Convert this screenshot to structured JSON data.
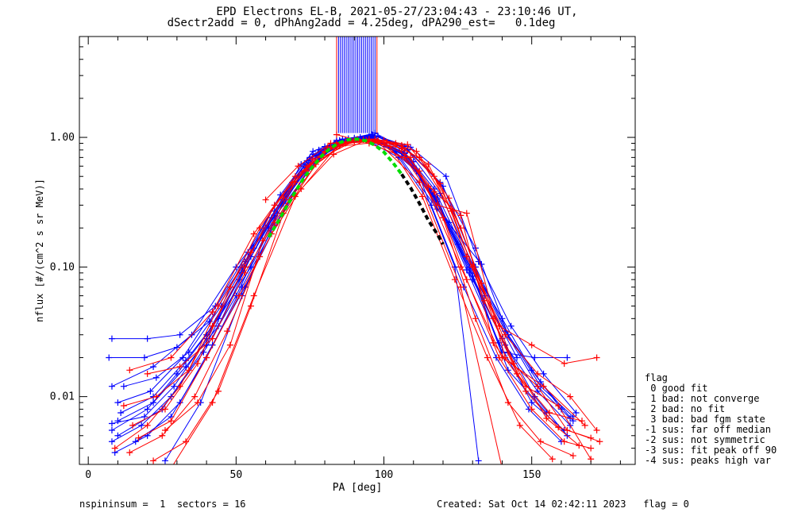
{
  "title_line1": "EPD Electrons EL-B, 2021-05-27/23:04:43 - 23:10:46 UT,",
  "title_line2": "dSectr2add = 0, dPhAng2add = 4.25deg, dPA290_est=   0.1deg",
  "footer_left": "nspininsum =  1  sectors = 16",
  "footer_right": "Created: Sat Oct 14 02:42:11 2023   flag = 0",
  "legend": {
    "title": "flag",
    "items": [
      " 0 good fit",
      " 1 bad: not converge",
      " 2 bad: no fit",
      " 3 bad: bad fgm state",
      "-1 sus: far off median",
      "-2 sus: not symmetric",
      "-3 sus: fit peak off 90",
      "-4 sus: peaks high var"
    ]
  },
  "chart_data": {
    "type": "line",
    "xlabel": "PA [deg]",
    "ylabel": "nflux [#/(cm^2 s sr MeV)]",
    "xlim": [
      -3,
      185
    ],
    "ylim": [
      0.003,
      6
    ],
    "yscale": "log",
    "xticks": [
      0,
      50,
      100,
      150
    ],
    "yticks": [
      0.01,
      0.1,
      1.0
    ],
    "ytick_labels": [
      "0.01",
      "0.10",
      "1.00"
    ],
    "colors": {
      "spin_a": "#ff0000",
      "spin_b": "#0000ff",
      "fit_green": "#00dd00",
      "fit_black": "#000000"
    },
    "series": [
      {
        "color": "spin_b",
        "x": [
          8,
          20,
          30,
          40,
          52,
          63,
          74,
          84,
          96,
          107,
          118,
          130,
          141,
          152,
          163
        ],
        "y": [
          0.0055,
          0.008,
          0.015,
          0.03,
          0.09,
          0.25,
          0.62,
          0.93,
          0.98,
          0.75,
          0.34,
          0.08,
          0.025,
          0.011,
          0.006
        ]
      },
      {
        "color": "spin_b",
        "x": [
          10,
          21,
          32,
          42,
          53,
          63,
          75,
          85,
          95,
          106,
          117,
          128,
          140,
          150,
          160
        ],
        "y": [
          0.009,
          0.011,
          0.02,
          0.045,
          0.11,
          0.3,
          0.7,
          0.95,
          1.02,
          0.82,
          0.4,
          0.12,
          0.04,
          0.016,
          0.008
        ]
      },
      {
        "color": "spin_b",
        "x": [
          8,
          18,
          28,
          39,
          50,
          61,
          73,
          84,
          94,
          105,
          116,
          127,
          138,
          149,
          160
        ],
        "y": [
          0.0045,
          0.006,
          0.01,
          0.022,
          0.06,
          0.2,
          0.55,
          0.88,
          0.96,
          0.7,
          0.3,
          0.07,
          0.02,
          0.008,
          0.0045
        ]
      },
      {
        "color": "spin_b",
        "x": [
          8,
          20,
          31,
          43,
          54,
          65,
          76,
          86,
          96,
          107,
          119,
          131,
          142,
          153,
          164
        ],
        "y": [
          0.028,
          0.028,
          0.03,
          0.05,
          0.13,
          0.36,
          0.78,
          0.97,
          1.05,
          0.85,
          0.45,
          0.14,
          0.03,
          0.012,
          0.007
        ]
      },
      {
        "color": "spin_b",
        "x": [
          7,
          19,
          30,
          41,
          52,
          63,
          74,
          85,
          95,
          106,
          117,
          129,
          140,
          151,
          162
        ],
        "y": [
          0.02,
          0.02,
          0.024,
          0.038,
          0.1,
          0.27,
          0.66,
          0.94,
          1.0,
          0.78,
          0.36,
          0.1,
          0.022,
          0.02,
          0.02
        ]
      },
      {
        "color": "spin_b",
        "x": [
          10,
          22,
          33,
          44,
          55,
          66,
          77,
          87,
          97,
          108,
          120,
          131,
          142,
          153,
          164
        ],
        "y": [
          0.0065,
          0.009,
          0.017,
          0.035,
          0.12,
          0.33,
          0.72,
          0.96,
          1.08,
          0.8,
          0.42,
          0.1,
          0.03,
          0.013,
          0.0065
        ]
      },
      {
        "color": "spin_b",
        "x": [
          9,
          20,
          31,
          42,
          53,
          64,
          75,
          85,
          96,
          107,
          118,
          129,
          140,
          151,
          162
        ],
        "y": [
          0.0037,
          0.005,
          0.009,
          0.025,
          0.07,
          0.22,
          0.6,
          0.9,
          0.97,
          0.72,
          0.32,
          0.09,
          0.028,
          0.01,
          0.005
        ]
      },
      {
        "color": "spin_b",
        "x": [
          12,
          23,
          34,
          45,
          56,
          67,
          78,
          88,
          98,
          109,
          121,
          132,
          143,
          154,
          165
        ],
        "y": [
          0.012,
          0.014,
          0.022,
          0.05,
          0.14,
          0.38,
          0.8,
          0.98,
          1.02,
          0.84,
          0.5,
          0.11,
          0.035,
          0.015,
          0.0075
        ]
      },
      {
        "color": "spin_b",
        "x": [
          8,
          19,
          29,
          40,
          51,
          62,
          73,
          84,
          95,
          106,
          117,
          128,
          139,
          150,
          161
        ],
        "y": [
          0.0062,
          0.007,
          0.012,
          0.028,
          0.08,
          0.24,
          0.6,
          0.92,
          0.99,
          0.76,
          0.35,
          0.095,
          0.026,
          0.009,
          0.0055
        ]
      },
      {
        "color": "spin_b",
        "x": [
          11,
          22,
          33,
          44,
          55,
          66,
          76,
          87,
          97,
          108,
          119,
          130,
          141,
          152,
          163
        ],
        "y": [
          0.0075,
          0.01,
          0.019,
          0.04,
          0.1,
          0.31,
          0.74,
          0.95,
          1.03,
          0.8,
          0.37,
          0.105,
          0.032,
          0.012,
          0.0068
        ]
      },
      {
        "color": "spin_b",
        "x": [
          8,
          22,
          35,
          50,
          64,
          78,
          90,
          100,
          111,
          122,
          134,
          145
        ],
        "y": [
          0.012,
          0.017,
          0.03,
          0.1,
          0.26,
          0.7,
          0.99,
          0.9,
          0.55,
          0.22,
          0.06,
          0.02
        ]
      },
      {
        "color": "spin_b",
        "x": [
          16,
          28,
          40,
          52,
          63,
          75,
          86,
          96,
          107,
          118,
          130,
          142,
          155
        ],
        "y": [
          0.0045,
          0.007,
          0.02,
          0.07,
          0.21,
          0.6,
          0.93,
          1.0,
          0.76,
          0.33,
          0.085,
          0.016,
          0.0075
        ]
      },
      {
        "color": "spin_b",
        "x": [
          10,
          25,
          40,
          55,
          70,
          84,
          97,
          110,
          125,
          142
        ],
        "y": [
          0.005,
          0.008,
          0.025,
          0.13,
          0.45,
          0.9,
          1.01,
          0.6,
          0.15,
          0.022
        ]
      },
      {
        "color": "spin_b",
        "x": [
          26,
          38,
          52,
          66,
          80,
          92,
          104,
          118,
          133
        ],
        "y": [
          0.0032,
          0.009,
          0.06,
          0.32,
          0.85,
          1.0,
          0.78,
          0.28,
          0.105
        ]
      },
      {
        "color": "spin_b",
        "x": [
          60,
          72,
          84,
          96,
          110,
          124,
          132
        ],
        "y": [
          0.2,
          0.62,
          0.95,
          1.04,
          0.65,
          0.1,
          0.0032
        ]
      },
      {
        "color": "spin_a",
        "x": [
          9,
          20,
          31,
          42,
          53,
          63,
          74,
          84,
          95,
          106,
          117,
          128,
          139,
          150,
          161,
          170
        ],
        "y": [
          0.004,
          0.006,
          0.012,
          0.035,
          0.1,
          0.3,
          0.6,
          0.88,
          0.94,
          0.82,
          0.38,
          0.08,
          0.02,
          0.008,
          0.0045,
          0.004
        ]
      },
      {
        "color": "spin_a",
        "x": [
          12,
          23,
          34,
          44,
          55,
          66,
          76,
          87,
          97,
          108,
          119,
          130,
          141,
          152,
          163,
          172
        ],
        "y": [
          0.0085,
          0.01,
          0.016,
          0.05,
          0.13,
          0.34,
          0.68,
          0.92,
          0.97,
          0.88,
          0.44,
          0.1,
          0.03,
          0.015,
          0.01,
          0.0055
        ]
      },
      {
        "color": "spin_a",
        "x": [
          15,
          26,
          37,
          48,
          58,
          69,
          80,
          90,
          101,
          112,
          123,
          134,
          145,
          156,
          167
        ],
        "y": [
          0.006,
          0.008,
          0.018,
          0.07,
          0.2,
          0.45,
          0.78,
          0.95,
          0.92,
          0.7,
          0.27,
          0.055,
          0.015,
          0.0075,
          0.0065
        ]
      },
      {
        "color": "spin_a",
        "x": [
          17,
          28,
          40,
          51,
          62,
          72,
          83,
          94,
          104,
          115,
          126,
          137,
          148,
          159,
          170
        ],
        "y": [
          0.0048,
          0.0065,
          0.02,
          0.06,
          0.18,
          0.4,
          0.74,
          0.95,
          0.9,
          0.62,
          0.2,
          0.04,
          0.011,
          0.0058,
          0.0048
        ]
      },
      {
        "color": "spin_a",
        "x": [
          20,
          31,
          42,
          53,
          63,
          74,
          85,
          95,
          106,
          117,
          128,
          139,
          150,
          161,
          172
        ],
        "y": [
          0.015,
          0.017,
          0.028,
          0.09,
          0.22,
          0.55,
          0.86,
          0.97,
          0.87,
          0.5,
          0.12,
          0.035,
          0.025,
          0.018,
          0.02
        ]
      },
      {
        "color": "spin_a",
        "x": [
          14,
          25,
          36,
          47,
          58,
          68,
          79,
          90,
          100,
          111,
          122,
          133,
          144,
          155,
          166
        ],
        "y": [
          0.0037,
          0.005,
          0.01,
          0.032,
          0.12,
          0.33,
          0.7,
          0.94,
          0.95,
          0.78,
          0.34,
          0.075,
          0.018,
          0.0068,
          0.0042
        ]
      },
      {
        "color": "spin_a",
        "x": [
          22,
          33,
          44,
          55,
          66,
          77,
          87,
          98,
          109,
          120,
          131,
          142,
          153,
          164
        ],
        "y": [
          0.0032,
          0.0045,
          0.011,
          0.05,
          0.26,
          0.62,
          0.9,
          0.95,
          0.7,
          0.24,
          0.04,
          0.009,
          0.0045,
          0.0035
        ]
      },
      {
        "color": "spin_a",
        "x": [
          60,
          71,
          82,
          93,
          104,
          115,
          126,
          137,
          148,
          159,
          170
        ],
        "y": [
          0.33,
          0.6,
          0.9,
          0.96,
          0.88,
          0.42,
          0.25,
          0.026,
          0.012,
          0.0085,
          0.0033
        ]
      },
      {
        "color": "spin_a",
        "x": [
          26,
          37,
          48,
          59,
          70,
          81,
          91,
          102,
          113,
          124,
          135,
          146,
          157
        ],
        "y": [
          0.0055,
          0.009,
          0.025,
          0.16,
          0.45,
          0.84,
          0.97,
          0.85,
          0.35,
          0.08,
          0.02,
          0.006,
          0.0033
        ]
      },
      {
        "color": "spin_a",
        "x": [
          84,
          95,
          107,
          118,
          128,
          141,
          152,
          162,
          173
        ],
        "y": [
          1.05,
          0.9,
          0.7,
          0.3,
          0.26,
          0.02,
          0.012,
          0.0055,
          0.0045
        ]
      },
      {
        "color": "spin_a",
        "x": [
          14,
          28,
          42,
          56,
          70,
          84,
          98,
          112,
          126,
          140,
          154,
          168
        ],
        "y": [
          0.016,
          0.02,
          0.045,
          0.18,
          0.5,
          0.9,
          0.93,
          0.55,
          0.1,
          0.02,
          0.012,
          0.006
        ]
      },
      {
        "color": "spin_a",
        "x": [
          28,
          42,
          56,
          70,
          84,
          98,
          112,
          126,
          140
        ],
        "y": [
          0.0028,
          0.009,
          0.06,
          0.35,
          0.85,
          0.92,
          0.45,
          0.07,
          0.0028
        ]
      }
    ],
    "fit_green": {
      "x": [
        61,
        64,
        67,
        70,
        73,
        76,
        79,
        82,
        85,
        88,
        91,
        94,
        97,
        100,
        103,
        106
      ],
      "y": [
        0.17,
        0.22,
        0.29,
        0.38,
        0.49,
        0.6,
        0.72,
        0.83,
        0.91,
        0.96,
        0.97,
        0.94,
        0.87,
        0.77,
        0.64,
        0.52
      ]
    },
    "fit_black": {
      "x": [
        106,
        109,
        112,
        115,
        118,
        120
      ],
      "y": [
        0.52,
        0.41,
        0.31,
        0.23,
        0.18,
        0.15
      ]
    }
  }
}
